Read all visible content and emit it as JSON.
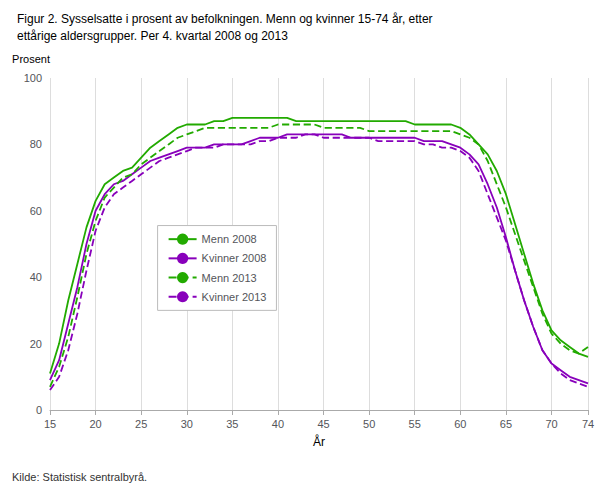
{
  "chart_data": {
    "type": "line",
    "title": "Figur 2. Sysselsatte i prosent av befolkningen. Menn og kvinner 15-74 år, etter",
    "subtitle": "ettårige aldersgrupper. Per 4. kvartal 2008 og 2013",
    "xlabel": "År",
    "ylabel": "Prosent",
    "annotations": [
      "Kilde: Statistisk sentralbyrå."
    ],
    "xlim": [
      15,
      74
    ],
    "ylim": [
      0,
      100
    ],
    "xticks": [
      15,
      20,
      25,
      30,
      35,
      40,
      45,
      50,
      55,
      60,
      65,
      70,
      74
    ],
    "yticks": [
      0,
      20,
      40,
      60,
      80,
      100
    ],
    "grid": "x",
    "legend": "left",
    "x": [
      15,
      16,
      17,
      18,
      19,
      20,
      21,
      22,
      23,
      24,
      25,
      26,
      27,
      28,
      29,
      30,
      31,
      32,
      33,
      34,
      35,
      36,
      37,
      38,
      39,
      40,
      41,
      42,
      43,
      44,
      45,
      46,
      47,
      48,
      49,
      50,
      51,
      52,
      53,
      54,
      55,
      56,
      57,
      58,
      59,
      60,
      61,
      62,
      63,
      64,
      65,
      66,
      67,
      68,
      69,
      70,
      71,
      72,
      73,
      74
    ],
    "series": [
      {
        "name": "Menn 2008",
        "color": "#22aa00",
        "line_style": "solid",
        "values": [
          11,
          20,
          33,
          44,
          55,
          63,
          68,
          70,
          72,
          73,
          76,
          79,
          81,
          83,
          85,
          86,
          86,
          86,
          87,
          87,
          88,
          88,
          88,
          88,
          88,
          88,
          88,
          87,
          87,
          87,
          87,
          87,
          87,
          87,
          87,
          87,
          87,
          87,
          87,
          87,
          86,
          86,
          86,
          86,
          86,
          85,
          83,
          80,
          77,
          72,
          65,
          56,
          47,
          38,
          30,
          24,
          21,
          19,
          17,
          16
        ]
      },
      {
        "name": "Kvinner 2008",
        "color": "#8800bb",
        "line_style": "solid",
        "values": [
          9,
          15,
          26,
          37,
          50,
          60,
          65,
          68,
          69,
          71,
          73,
          75,
          76,
          77,
          78,
          79,
          79,
          79,
          80,
          80,
          80,
          80,
          81,
          82,
          82,
          82,
          83,
          83,
          83,
          83,
          83,
          83,
          83,
          82,
          82,
          82,
          82,
          82,
          82,
          82,
          82,
          81,
          81,
          81,
          80,
          79,
          77,
          74,
          68,
          61,
          52,
          42,
          33,
          25,
          18,
          14,
          12,
          10,
          9,
          8
        ]
      },
      {
        "name": "Menn 2013",
        "color": "#22aa00",
        "line_style": "dashed",
        "values": [
          7,
          13,
          22,
          34,
          47,
          57,
          64,
          67,
          70,
          71,
          74,
          76,
          78,
          80,
          82,
          83,
          84,
          85,
          85,
          85,
          85,
          85,
          85,
          85,
          85,
          86,
          86,
          86,
          86,
          86,
          85,
          85,
          85,
          85,
          85,
          84,
          84,
          84,
          84,
          84,
          84,
          84,
          84,
          84,
          84,
          83,
          82,
          80,
          75,
          68,
          61,
          53,
          45,
          37,
          29,
          23,
          20,
          18,
          17,
          19
        ]
      },
      {
        "name": "Kvinner 2013",
        "color": "#8800bb",
        "line_style": "dashed",
        "values": [
          6,
          10,
          18,
          29,
          42,
          54,
          61,
          65,
          67,
          69,
          71,
          73,
          75,
          76,
          77,
          78,
          79,
          79,
          79,
          80,
          80,
          80,
          80,
          81,
          81,
          82,
          82,
          82,
          83,
          83,
          82,
          82,
          82,
          82,
          82,
          82,
          81,
          81,
          81,
          81,
          81,
          80,
          80,
          79,
          79,
          78,
          76,
          72,
          65,
          58,
          51,
          42,
          33,
          25,
          18,
          14,
          11,
          9,
          8,
          7
        ]
      }
    ]
  }
}
